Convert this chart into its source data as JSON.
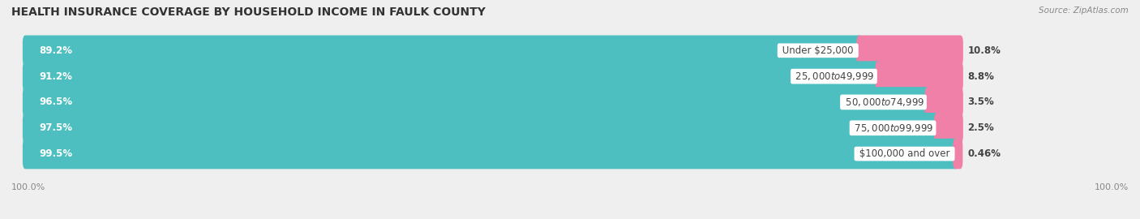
{
  "title": "HEALTH INSURANCE COVERAGE BY HOUSEHOLD INCOME IN FAULK COUNTY",
  "source": "Source: ZipAtlas.com",
  "categories": [
    "Under $25,000",
    "$25,000 to $49,999",
    "$50,000 to $74,999",
    "$75,000 to $99,999",
    "$100,000 and over"
  ],
  "with_coverage": [
    89.2,
    91.2,
    96.5,
    97.5,
    99.5
  ],
  "without_coverage": [
    10.8,
    8.8,
    3.5,
    2.5,
    0.46
  ],
  "with_coverage_labels": [
    "89.2%",
    "91.2%",
    "96.5%",
    "97.5%",
    "99.5%"
  ],
  "without_coverage_labels": [
    "10.8%",
    "8.8%",
    "3.5%",
    "2.5%",
    "0.46%"
  ],
  "color_with": "#4dbfc0",
  "color_without": "#f080a8",
  "row_bg_even": "#f2f2f2",
  "row_bg_odd": "#e8e8e8",
  "title_fontsize": 10,
  "label_fontsize": 8.5,
  "tick_fontsize": 8,
  "legend_fontsize": 8.5,
  "source_fontsize": 7.5,
  "bg_color": "#efefef",
  "total_bar_width": 100
}
